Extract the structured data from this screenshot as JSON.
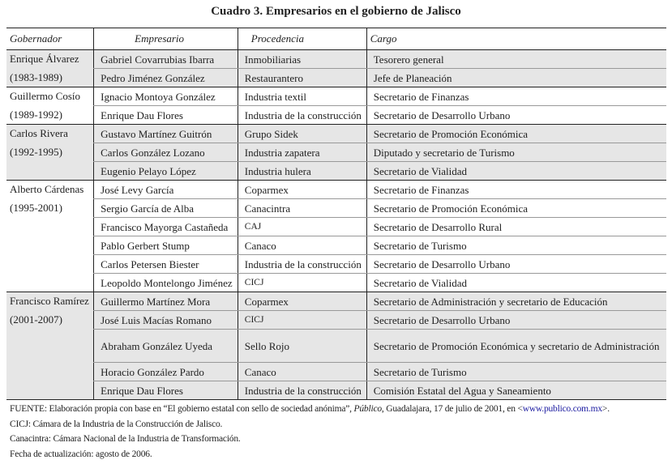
{
  "title": "Cuadro 3. Empresarios en el gobierno de Jalisco",
  "headers": [
    "Gobernador",
    "Empresario",
    "Procedencia",
    "Cargo"
  ],
  "groups": [
    {
      "name": "Enrique Álvarez",
      "period": "(1983-1989)",
      "shaded": true,
      "rows": [
        {
          "empresario": "Gabriel Covarrubias Ibarra",
          "procedencia": "Inmobiliarias",
          "cargo": "Tesorero general"
        },
        {
          "empresario": "Pedro Jiménez González",
          "procedencia": "Restaurantero",
          "cargo": "Jefe de Planeación"
        }
      ]
    },
    {
      "name": "Guillermo Cosío",
      "period": "(1989-1992)",
      "shaded": false,
      "rows": [
        {
          "empresario": "Ignacio Montoya González",
          "procedencia": "Industria textil",
          "cargo": "Secretario de Finanzas"
        },
        {
          "empresario": "Enrique Dau Flores",
          "procedencia": "Industria de la construcción",
          "cargo": "Secretario de Desarrollo  Urbano"
        }
      ]
    },
    {
      "name": "Carlos Rivera",
      "period": "(1992-1995)",
      "shaded": true,
      "rows": [
        {
          "empresario": "Gustavo Martínez Guitrón",
          "procedencia": "Grupo Sidek",
          "cargo": "Secretario de Promoción Económica"
        },
        {
          "empresario": "Carlos González Lozano",
          "procedencia": "Industria zapatera",
          "cargo": "Diputado y secretario de Turismo"
        },
        {
          "empresario": "Eugenio Pelayo López",
          "procedencia": "Industria hulera",
          "cargo": "Secretario de Vialidad"
        }
      ]
    },
    {
      "name": "Alberto Cárdenas",
      "period": "(1995-2001)",
      "shaded": false,
      "rows": [
        {
          "empresario": "José Levy García",
          "procedencia": "Coparmex",
          "cargo": "Secretario de Finanzas"
        },
        {
          "empresario": "Sergio García de Alba",
          "procedencia": "Canacintra",
          "cargo": "Secretario de Promoción Económica"
        },
        {
          "empresario": "Francisco Mayorga Castañeda",
          "procedencia": "CAJ",
          "cargo": "Secretario de Desarrollo Rural"
        },
        {
          "empresario": "Pablo Gerbert Stump",
          "procedencia": "Canaco",
          "cargo": "Secretario de Turismo"
        },
        {
          "empresario": "Carlos Petersen Biester",
          "procedencia": "Industria de la construcción",
          "cargo": "Secretario de Desarrollo Urbano"
        },
        {
          "empresario": "Leopoldo Montelongo Jiménez",
          "procedencia": "CICJ",
          "cargo": "Secretario de Vialidad"
        }
      ]
    },
    {
      "name": "Francisco Ramírez",
      "period": "(2001-2007)",
      "shaded": true,
      "rows": [
        {
          "empresario": "Guillermo Martínez Mora",
          "procedencia": "Coparmex",
          "cargo": "Secretario de Administración y secretario de Educación"
        },
        {
          "empresario": "José Luis Macías Romano",
          "procedencia": "CICJ",
          "cargo": "Secretario de Desarrollo Urbano"
        },
        {
          "empresario": "Abraham González Uyeda",
          "procedencia": "Sello Rojo",
          "cargo": "Secretario de Promoción Económica y secretario de Administración"
        },
        {
          "empresario": "Horacio González Pardo",
          "procedencia": "Canaco",
          "cargo": "Secretario de Turismo"
        },
        {
          "empresario": "Enrique Dau Flores",
          "procedencia": "Industria de la construcción",
          "cargo": "Comisión Estatal del Agua y Saneamiento"
        }
      ]
    }
  ],
  "notes": {
    "source_prefix": "FUENTE: Elaboración propia con base en “El gobierno estatal con sello de sociedad anónima”, ",
    "source_publication": "Público",
    "source_suffix": ", Guadalajara, 17 de julio de 2001, en <",
    "source_link": "www.publico.com.mx",
    "source_end": ">.",
    "cicj": "CICJ: Cámara de la Industria de la Construcción de Jalisco.",
    "canacintra": "Canacintra: Cámara Nacional de la Industria de Transformación.",
    "updated": "Fecha de actualización: agosto de 2006."
  },
  "colors": {
    "shade": "#e6e6e6",
    "link": "#1a1aa0"
  }
}
